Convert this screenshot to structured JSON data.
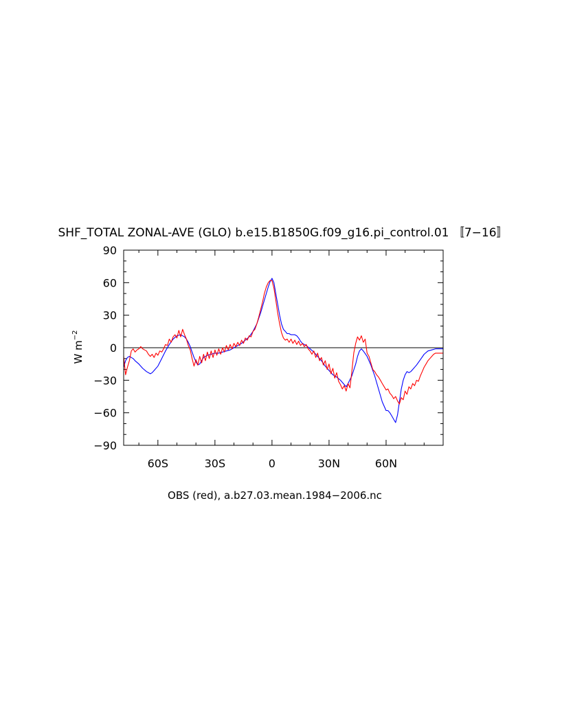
{
  "chart_data": {
    "type": "line",
    "title": "SHF_TOTAL ZONAL-AVE (GLO) b.e15.B1850G.f09_g16.pi_control.01 〚7−16〛",
    "xlabel": "OBS (red), a.b27.03.mean.1984−2006.nc",
    "ylabel": "W m",
    "ylabel_exponent": "−2",
    "xlim": [
      -78,
      90
    ],
    "ylim": [
      -90,
      90
    ],
    "x_ticks": [
      {
        "value": -60,
        "label": "60S"
      },
      {
        "value": -30,
        "label": "30S"
      },
      {
        "value": 0,
        "label": "0"
      },
      {
        "value": 30,
        "label": "30N"
      },
      {
        "value": 60,
        "label": "60N"
      }
    ],
    "y_ticks": [
      {
        "value": 90,
        "label": "90"
      },
      {
        "value": 60,
        "label": "60"
      },
      {
        "value": 30,
        "label": "30"
      },
      {
        "value": 0,
        "label": "0"
      },
      {
        "value": -30,
        "label": "−30"
      },
      {
        "value": -60,
        "label": "−60"
      },
      {
        "value": -90,
        "label": "−90"
      }
    ],
    "reference_line": 0,
    "grid": false,
    "series": [
      {
        "color": "#0000ff",
        "points": [
          [
            -78,
            -18
          ],
          [
            -77,
            -12
          ],
          [
            -76,
            -9
          ],
          [
            -75,
            -8
          ],
          [
            -74,
            -9
          ],
          [
            -73,
            -10
          ],
          [
            -72,
            -12
          ],
          [
            -70,
            -15
          ],
          [
            -68,
            -19
          ],
          [
            -66,
            -22
          ],
          [
            -64,
            -24
          ],
          [
            -63,
            -23
          ],
          [
            -62,
            -21
          ],
          [
            -60,
            -17
          ],
          [
            -58,
            -10
          ],
          [
            -56,
            -3
          ],
          [
            -54,
            3
          ],
          [
            -52,
            8
          ],
          [
            -50,
            11
          ],
          [
            -48,
            12
          ],
          [
            -46,
            10
          ],
          [
            -45,
            8
          ],
          [
            -44,
            5
          ],
          [
            -43,
            1
          ],
          [
            -42,
            -4
          ],
          [
            -41,
            -9
          ],
          [
            -40,
            -13
          ],
          [
            -39,
            -16
          ],
          [
            -38,
            -15
          ],
          [
            -37,
            -12
          ],
          [
            -36,
            -9
          ],
          [
            -34,
            -7
          ],
          [
            -32,
            -6
          ],
          [
            -30,
            -5
          ],
          [
            -28,
            -5
          ],
          [
            -26,
            -4
          ],
          [
            -24,
            -3
          ],
          [
            -22,
            -2
          ],
          [
            -20,
            0
          ],
          [
            -18,
            2
          ],
          [
            -16,
            4
          ],
          [
            -14,
            7
          ],
          [
            -12,
            10
          ],
          [
            -10,
            15
          ],
          [
            -8,
            22
          ],
          [
            -6,
            32
          ],
          [
            -4,
            44
          ],
          [
            -2,
            56
          ],
          [
            -1,
            61
          ],
          [
            0,
            64
          ],
          [
            1,
            60
          ],
          [
            2,
            50
          ],
          [
            3,
            40
          ],
          [
            4,
            30
          ],
          [
            5,
            22
          ],
          [
            6,
            17
          ],
          [
            7,
            15
          ],
          [
            8,
            13
          ],
          [
            9,
            13
          ],
          [
            10,
            12
          ],
          [
            11,
            12
          ],
          [
            12,
            12
          ],
          [
            13,
            11
          ],
          [
            14,
            9
          ],
          [
            15,
            6
          ],
          [
            16,
            4
          ],
          [
            18,
            2
          ],
          [
            20,
            -1
          ],
          [
            22,
            -4
          ],
          [
            24,
            -8
          ],
          [
            26,
            -12
          ],
          [
            28,
            -17
          ],
          [
            30,
            -21
          ],
          [
            32,
            -25
          ],
          [
            34,
            -27
          ],
          [
            36,
            -30
          ],
          [
            38,
            -34
          ],
          [
            39,
            -36
          ],
          [
            40,
            -33
          ],
          [
            42,
            -26
          ],
          [
            44,
            -15
          ],
          [
            45,
            -8
          ],
          [
            46,
            -3
          ],
          [
            47,
            -1
          ],
          [
            48,
            -3
          ],
          [
            50,
            -8
          ],
          [
            52,
            -16
          ],
          [
            54,
            -26
          ],
          [
            56,
            -38
          ],
          [
            58,
            -50
          ],
          [
            60,
            -58
          ],
          [
            61,
            -58
          ],
          [
            62,
            -60
          ],
          [
            63,
            -63
          ],
          [
            64,
            -66
          ],
          [
            65,
            -69
          ],
          [
            66,
            -62
          ],
          [
            67,
            -50
          ],
          [
            68,
            -38
          ],
          [
            69,
            -30
          ],
          [
            70,
            -25
          ],
          [
            71,
            -22
          ],
          [
            72,
            -23
          ],
          [
            73,
            -22
          ],
          [
            74,
            -20
          ],
          [
            76,
            -16
          ],
          [
            78,
            -11
          ],
          [
            80,
            -6
          ],
          [
            82,
            -3
          ],
          [
            84,
            -2
          ],
          [
            86,
            -1
          ],
          [
            88,
            -1
          ],
          [
            90,
            -1
          ]
        ]
      },
      {
        "color": "#ff0000",
        "points": [
          [
            -78,
            -8
          ],
          [
            -77,
            -25
          ],
          [
            -76,
            -18
          ],
          [
            -75,
            -12
          ],
          [
            -74,
            -3
          ],
          [
            -73,
            -1
          ],
          [
            -72,
            -4
          ],
          [
            -71,
            -2
          ],
          [
            -70,
            -1
          ],
          [
            -69,
            1
          ],
          [
            -68,
            -1
          ],
          [
            -67,
            -2
          ],
          [
            -66,
            -3
          ],
          [
            -65,
            -6
          ],
          [
            -64,
            -8
          ],
          [
            -63,
            -6
          ],
          [
            -62,
            -9
          ],
          [
            -61,
            -5
          ],
          [
            -60,
            -7
          ],
          [
            -59,
            -3
          ],
          [
            -58,
            -4
          ],
          [
            -57,
            -1
          ],
          [
            -56,
            3
          ],
          [
            -55,
            2
          ],
          [
            -54,
            8
          ],
          [
            -53,
            5
          ],
          [
            -52,
            10
          ],
          [
            -51,
            12
          ],
          [
            -50,
            9
          ],
          [
            -49,
            16
          ],
          [
            -48,
            10
          ],
          [
            -47,
            17
          ],
          [
            -46,
            12
          ],
          [
            -45,
            8
          ],
          [
            -44,
            2
          ],
          [
            -43,
            -2
          ],
          [
            -42,
            -10
          ],
          [
            -41,
            -17
          ],
          [
            -40,
            -11
          ],
          [
            -39,
            -16
          ],
          [
            -38,
            -8
          ],
          [
            -37,
            -14
          ],
          [
            -36,
            -6
          ],
          [
            -35,
            -12
          ],
          [
            -34,
            -4
          ],
          [
            -33,
            -10
          ],
          [
            -32,
            -3
          ],
          [
            -31,
            -9
          ],
          [
            -30,
            -2
          ],
          [
            -29,
            -7
          ],
          [
            -28,
            -1
          ],
          [
            -27,
            -6
          ],
          [
            -26,
            0
          ],
          [
            -25,
            -4
          ],
          [
            -24,
            2
          ],
          [
            -23,
            -2
          ],
          [
            -22,
            3
          ],
          [
            -21,
            -1
          ],
          [
            -20,
            4
          ],
          [
            -19,
            1
          ],
          [
            -18,
            5
          ],
          [
            -17,
            2
          ],
          [
            -16,
            7
          ],
          [
            -15,
            4
          ],
          [
            -14,
            9
          ],
          [
            -13,
            7
          ],
          [
            -12,
            11
          ],
          [
            -11,
            10
          ],
          [
            -10,
            15
          ],
          [
            -9,
            17
          ],
          [
            -8,
            22
          ],
          [
            -7,
            28
          ],
          [
            -6,
            35
          ],
          [
            -5,
            42
          ],
          [
            -4,
            50
          ],
          [
            -3,
            56
          ],
          [
            -2,
            60
          ],
          [
            -1,
            62
          ],
          [
            0,
            62
          ],
          [
            1,
            55
          ],
          [
            2,
            44
          ],
          [
            3,
            32
          ],
          [
            4,
            22
          ],
          [
            5,
            14
          ],
          [
            6,
            9
          ],
          [
            7,
            7
          ],
          [
            8,
            8
          ],
          [
            9,
            5
          ],
          [
            10,
            8
          ],
          [
            11,
            4
          ],
          [
            12,
            7
          ],
          [
            13,
            3
          ],
          [
            14,
            6
          ],
          [
            15,
            2
          ],
          [
            16,
            4
          ],
          [
            17,
            1
          ],
          [
            18,
            3
          ],
          [
            19,
            -1
          ],
          [
            20,
            -3
          ],
          [
            21,
            -6
          ],
          [
            22,
            -3
          ],
          [
            23,
            -9
          ],
          [
            24,
            -5
          ],
          [
            25,
            -12
          ],
          [
            26,
            -9
          ],
          [
            27,
            -16
          ],
          [
            28,
            -12
          ],
          [
            29,
            -20
          ],
          [
            30,
            -15
          ],
          [
            31,
            -24
          ],
          [
            32,
            -19
          ],
          [
            33,
            -28
          ],
          [
            34,
            -23
          ],
          [
            35,
            -31
          ],
          [
            36,
            -34
          ],
          [
            37,
            -38
          ],
          [
            38,
            -35
          ],
          [
            39,
            -40
          ],
          [
            40,
            -33
          ],
          [
            41,
            -37
          ],
          [
            42,
            -22
          ],
          [
            43,
            -5
          ],
          [
            44,
            4
          ],
          [
            45,
            10
          ],
          [
            46,
            7
          ],
          [
            47,
            11
          ],
          [
            48,
            5
          ],
          [
            49,
            8
          ],
          [
            50,
            -5
          ],
          [
            51,
            -8
          ],
          [
            52,
            -14
          ],
          [
            53,
            -20
          ],
          [
            54,
            -22
          ],
          [
            55,
            -25
          ],
          [
            56,
            -27
          ],
          [
            57,
            -30
          ],
          [
            58,
            -33
          ],
          [
            59,
            -36
          ],
          [
            60,
            -39
          ],
          [
            61,
            -38
          ],
          [
            62,
            -42
          ],
          [
            63,
            -44
          ],
          [
            64,
            -47
          ],
          [
            65,
            -45
          ],
          [
            66,
            -49
          ],
          [
            67,
            -52
          ],
          [
            68,
            -46
          ],
          [
            69,
            -48
          ],
          [
            70,
            -40
          ],
          [
            71,
            -43
          ],
          [
            72,
            -36
          ],
          [
            73,
            -38
          ],
          [
            74,
            -33
          ],
          [
            75,
            -35
          ],
          [
            76,
            -30
          ],
          [
            77,
            -31
          ],
          [
            78,
            -26
          ],
          [
            79,
            -22
          ],
          [
            80,
            -18
          ],
          [
            81,
            -15
          ],
          [
            82,
            -12
          ],
          [
            83,
            -10
          ],
          [
            84,
            -8
          ],
          [
            85,
            -6
          ],
          [
            86,
            -5
          ],
          [
            87,
            -5
          ],
          [
            88,
            -5
          ],
          [
            90,
            -5
          ]
        ]
      }
    ]
  }
}
